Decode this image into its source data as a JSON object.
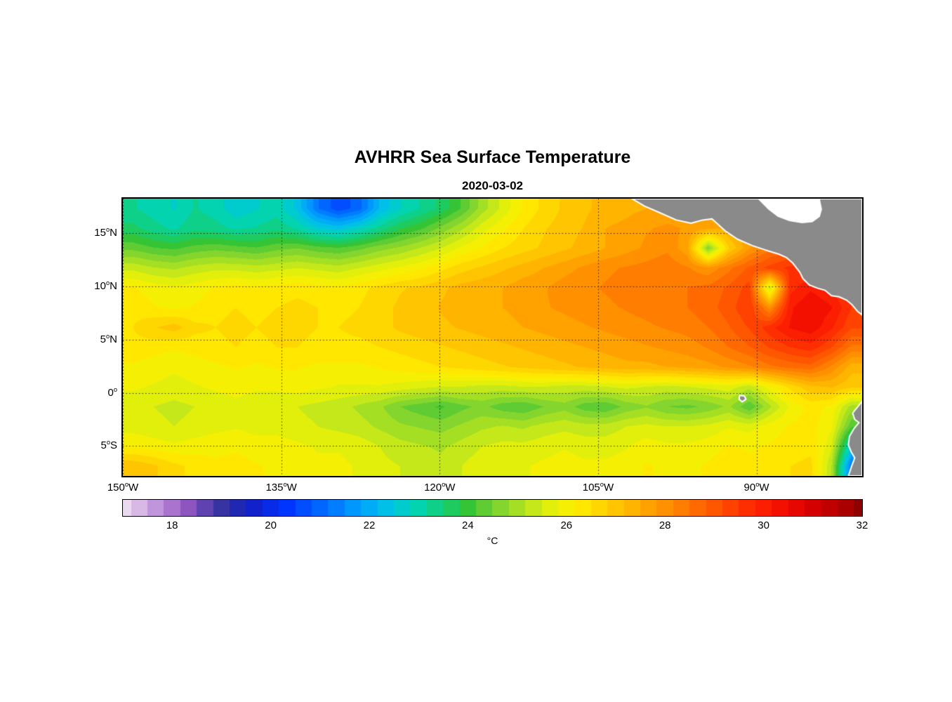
{
  "chart_data": {
    "type": "heatmap",
    "title": "AVHRR Sea Surface Temperature",
    "subtitle": "2020-03-02",
    "colorbar": {
      "label": "°C",
      "min": 17,
      "max": 32,
      "ticks": [
        18,
        20,
        22,
        24,
        26,
        28,
        30,
        32
      ]
    },
    "axes": {
      "lon_range": [
        -150,
        -80
      ],
      "lat_range": [
        -7.8,
        18.2
      ],
      "degree_symbol": "o",
      "xticks": [
        {
          "value": "150",
          "dir": "W",
          "lon": -150
        },
        {
          "value": "135",
          "dir": "W",
          "lon": -135
        },
        {
          "value": "120",
          "dir": "W",
          "lon": -120
        },
        {
          "value": "105",
          "dir": "W",
          "lon": -105
        },
        {
          "value": "90",
          "dir": "W",
          "lon": -90
        }
      ],
      "yticks": [
        {
          "value": "15",
          "dir": "N",
          "lat": 15
        },
        {
          "value": "10",
          "dir": "N",
          "lat": 10
        },
        {
          "value": "5",
          "dir": "N",
          "lat": 5
        },
        {
          "value": "0",
          "dir": "",
          "lat": 0
        },
        {
          "value": "5",
          "dir": "S",
          "lat": -5
        }
      ],
      "grid_style": "dotted"
    },
    "colormap": [
      [
        17.0,
        "#ead9f0"
      ],
      [
        17.4,
        "#d4b2e4"
      ],
      [
        17.8,
        "#b886d6"
      ],
      [
        18.3,
        "#9257c2"
      ],
      [
        18.7,
        "#5c3fae"
      ],
      [
        19.1,
        "#2b2f9e"
      ],
      [
        19.6,
        "#1320c8"
      ],
      [
        20.3,
        "#0033ff"
      ],
      [
        21.0,
        "#0066ff"
      ],
      [
        21.7,
        "#0099ff"
      ],
      [
        22.3,
        "#00bfea"
      ],
      [
        22.9,
        "#00d4bb"
      ],
      [
        23.5,
        "#13cf74"
      ],
      [
        24.0,
        "#35c435"
      ],
      [
        24.6,
        "#7ed32f"
      ],
      [
        25.2,
        "#b8e51e"
      ],
      [
        25.7,
        "#e5f00a"
      ],
      [
        26.2,
        "#ffee00"
      ],
      [
        26.8,
        "#ffd000"
      ],
      [
        27.4,
        "#ffb000"
      ],
      [
        28.0,
        "#ff9000"
      ],
      [
        28.6,
        "#ff6d00"
      ],
      [
        29.2,
        "#ff4a00"
      ],
      [
        29.8,
        "#ff2600"
      ],
      [
        30.4,
        "#f20d00"
      ],
      [
        31.0,
        "#d40000"
      ],
      [
        31.6,
        "#b00000"
      ],
      [
        32.0,
        "#8f0000"
      ]
    ],
    "land_color": "#8a8a8a",
    "coast_color": "#ffffff",
    "sst_grid": {
      "cols": 36,
      "rows": 14,
      "units": "degC",
      "values": [
        [
          23.2,
          23.0,
          22.8,
          23.2,
          23.0,
          22.6,
          22.8,
          23.0,
          22.4,
          21.2,
          20.6,
          21.0,
          22.2,
          22.8,
          23.2,
          23.6,
          24.2,
          25.0,
          25.6,
          26.2,
          26.6,
          26.9,
          27.1,
          27.3,
          27.4,
          27.5,
          27.6,
          27.6,
          27.4,
          27.2,
          27.2,
          27.3,
          27.5,
          27.5,
          27.4,
          27.2
        ],
        [
          23.6,
          23.3,
          23.1,
          23.4,
          23.3,
          23.1,
          23.2,
          23.4,
          23.1,
          22.6,
          22.4,
          22.8,
          23.3,
          23.8,
          24.1,
          24.6,
          25.1,
          25.7,
          26.1,
          26.5,
          26.8,
          27.0,
          27.2,
          27.5,
          27.6,
          27.8,
          27.9,
          27.8,
          27.6,
          27.5,
          27.7,
          27.9,
          28.1,
          28.0,
          27.8,
          27.6
        ],
        [
          24.4,
          24.2,
          24.1,
          24.3,
          24.4,
          24.3,
          24.2,
          24.4,
          24.5,
          24.3,
          24.2,
          24.4,
          24.7,
          24.9,
          25.2,
          25.5,
          25.9,
          26.2,
          26.5,
          26.7,
          26.9,
          27.1,
          27.3,
          27.5,
          27.7,
          27.9,
          28.1,
          27.6,
          24.6,
          26.8,
          27.8,
          28.4,
          28.7,
          28.5,
          28.2,
          28.0
        ],
        [
          25.4,
          25.2,
          25.1,
          25.3,
          25.4,
          25.4,
          25.3,
          25.4,
          25.5,
          25.4,
          25.3,
          25.5,
          25.7,
          25.9,
          26.1,
          26.4,
          26.7,
          26.9,
          27.1,
          27.3,
          27.5,
          27.7,
          27.9,
          28.1,
          28.2,
          28.3,
          28.4,
          28.2,
          27.9,
          28.4,
          28.9,
          29.3,
          29.6,
          29.4,
          29.0,
          28.5
        ],
        [
          26.2,
          26.0,
          25.9,
          26.0,
          26.2,
          26.3,
          26.2,
          26.3,
          26.4,
          26.3,
          26.2,
          26.4,
          26.6,
          26.8,
          26.9,
          27.1,
          27.3,
          27.4,
          27.5,
          27.7,
          27.8,
          28.0,
          28.1,
          28.2,
          28.3,
          28.4,
          28.5,
          28.5,
          28.6,
          28.9,
          29.3,
          25.4,
          29.7,
          30.1,
          29.8,
          29.2
        ],
        [
          26.4,
          26.2,
          26.1,
          26.2,
          26.4,
          26.5,
          26.4,
          26.5,
          26.6,
          26.5,
          26.4,
          26.5,
          26.7,
          26.9,
          27.0,
          27.2,
          27.3,
          27.4,
          27.5,
          27.6,
          27.8,
          27.9,
          28.0,
          28.1,
          28.2,
          28.3,
          28.4,
          28.5,
          28.7,
          29.0,
          29.5,
          28.0,
          30.1,
          30.5,
          30.2,
          29.5
        ],
        [
          26.5,
          26.8,
          27.0,
          26.6,
          26.5,
          26.6,
          26.5,
          26.6,
          26.6,
          26.5,
          26.5,
          26.6,
          26.7,
          26.9,
          27.0,
          27.1,
          27.2,
          27.3,
          27.4,
          27.5,
          27.6,
          27.7,
          27.8,
          27.9,
          28.0,
          28.1,
          28.2,
          28.3,
          28.5,
          28.8,
          29.2,
          29.7,
          30.2,
          30.4,
          29.9,
          29.2
        ],
        [
          26.4,
          26.3,
          26.2,
          26.3,
          26.4,
          26.5,
          26.4,
          26.5,
          26.5,
          26.4,
          26.4,
          26.4,
          26.5,
          26.6,
          26.7,
          26.8,
          26.9,
          27.0,
          27.1,
          27.2,
          27.3,
          27.4,
          27.5,
          27.6,
          27.7,
          27.8,
          27.9,
          28.0,
          28.2,
          28.5,
          28.8,
          29.2,
          29.5,
          29.7,
          29.2,
          28.4
        ],
        [
          26.1,
          26.0,
          25.9,
          26.0,
          26.1,
          26.2,
          26.1,
          26.2,
          26.2,
          26.1,
          26.1,
          26.1,
          26.2,
          26.3,
          26.4,
          26.5,
          26.6,
          26.7,
          26.8,
          26.9,
          27.0,
          27.1,
          27.2,
          27.3,
          27.4,
          27.4,
          27.5,
          27.6,
          27.7,
          27.9,
          28.1,
          28.4,
          28.6,
          28.7,
          28.1,
          27.3
        ],
        [
          25.9,
          25.8,
          25.7,
          25.8,
          25.9,
          26.0,
          25.9,
          25.9,
          26.0,
          25.9,
          25.8,
          25.8,
          25.8,
          25.7,
          25.6,
          25.5,
          25.5,
          25.4,
          25.4,
          25.5,
          25.5,
          25.4,
          25.4,
          25.5,
          25.6,
          25.5,
          25.4,
          25.5,
          25.6,
          25.7,
          25.3,
          26.0,
          26.6,
          27.1,
          27.2,
          26.9
        ],
        [
          25.6,
          25.5,
          25.4,
          25.5,
          25.6,
          25.7,
          25.6,
          25.6,
          25.5,
          25.4,
          25.3,
          25.1,
          24.9,
          24.5,
          24.3,
          24.1,
          24.4,
          24.6,
          24.3,
          24.2,
          24.5,
          24.7,
          24.3,
          24.2,
          24.6,
          24.8,
          24.5,
          24.4,
          24.6,
          24.9,
          24.2,
          25.1,
          25.9,
          26.3,
          26.1,
          25.0
        ],
        [
          25.7,
          25.6,
          25.5,
          25.6,
          25.7,
          25.8,
          25.7,
          25.7,
          25.6,
          25.5,
          25.4,
          25.3,
          25.1,
          24.9,
          24.8,
          24.7,
          24.9,
          25.1,
          25.2,
          25.1,
          25.3,
          25.4,
          25.3,
          25.3,
          25.5,
          25.6,
          25.5,
          25.5,
          25.6,
          25.8,
          25.7,
          26.0,
          26.2,
          26.3,
          25.9,
          24.2
        ],
        [
          26.1,
          26.0,
          25.9,
          26.0,
          26.1,
          26.1,
          26.0,
          26.0,
          25.9,
          25.8,
          25.8,
          25.7,
          25.5,
          25.3,
          25.2,
          25.1,
          25.3,
          25.5,
          25.6,
          25.6,
          25.7,
          25.8,
          25.7,
          25.7,
          25.8,
          26.0,
          25.9,
          25.9,
          26.0,
          26.2,
          26.1,
          26.2,
          26.3,
          26.4,
          25.6,
          22.5
        ],
        [
          27.1,
          26.9,
          26.6,
          26.4,
          26.2,
          26.3,
          26.2,
          26.1,
          26.0,
          25.9,
          25.9,
          25.8,
          25.6,
          25.5,
          25.4,
          25.3,
          25.5,
          25.7,
          25.8,
          25.8,
          25.9,
          26.0,
          25.9,
          25.9,
          26.0,
          26.2,
          26.1,
          26.1,
          26.2,
          26.4,
          26.3,
          26.4,
          26.5,
          26.6,
          25.2,
          21.0
        ]
      ]
    },
    "land_polygons": [
      {
        "name": "central-america",
        "fill": "#8a8a8a",
        "stroke": "#ffffff",
        "points": [
          [
            -101.8,
            18.2
          ],
          [
            -100.6,
            17.5
          ],
          [
            -99.2,
            16.9
          ],
          [
            -97.6,
            16.2
          ],
          [
            -96.2,
            15.9
          ],
          [
            -95.1,
            16.2
          ],
          [
            -94.2,
            16.3
          ],
          [
            -93.0,
            15.2
          ],
          [
            -91.8,
            14.4
          ],
          [
            -90.4,
            13.8
          ],
          [
            -89.2,
            13.4
          ],
          [
            -87.9,
            13.0
          ],
          [
            -87.2,
            12.7
          ],
          [
            -86.6,
            12.2
          ],
          [
            -85.9,
            11.3
          ],
          [
            -85.6,
            10.7
          ],
          [
            -85.0,
            10.1
          ],
          [
            -84.2,
            9.8
          ],
          [
            -83.5,
            9.6
          ],
          [
            -82.9,
            9.1
          ],
          [
            -82.2,
            9.0
          ],
          [
            -81.5,
            8.7
          ],
          [
            -81.0,
            8.3
          ],
          [
            -80.4,
            7.6
          ],
          [
            -80.0,
            7.3
          ],
          [
            -80.0,
            18.2
          ]
        ]
      },
      {
        "name": "caribbean-nodata",
        "fill": "#ffffff",
        "stroke": "none",
        "points": [
          [
            -89.9,
            18.2
          ],
          [
            -88.9,
            17.2
          ],
          [
            -88.0,
            16.5
          ],
          [
            -86.9,
            16.1
          ],
          [
            -85.7,
            15.9
          ],
          [
            -84.7,
            16.0
          ],
          [
            -84.0,
            16.5
          ],
          [
            -83.8,
            17.2
          ],
          [
            -84.0,
            18.2
          ]
        ]
      },
      {
        "name": "south-america",
        "fill": "#8a8a8a",
        "stroke": "#ffffff",
        "points": [
          [
            -80.0,
            -0.8
          ],
          [
            -80.4,
            -1.3
          ],
          [
            -80.9,
            -1.9
          ],
          [
            -80.7,
            -2.5
          ],
          [
            -80.3,
            -2.8
          ],
          [
            -80.8,
            -3.4
          ],
          [
            -81.2,
            -4.1
          ],
          [
            -81.3,
            -4.9
          ],
          [
            -81.0,
            -5.6
          ],
          [
            -80.7,
            -6.1
          ],
          [
            -81.0,
            -6.9
          ],
          [
            -81.3,
            -7.8
          ],
          [
            -80.0,
            -7.8
          ]
        ]
      },
      {
        "name": "galapagos-islands",
        "fill": "#8a8a8a",
        "stroke": "#ffffff",
        "points": [
          [
            -91.6,
            -0.25
          ],
          [
            -91.15,
            -0.3
          ],
          [
            -91.0,
            -0.6
          ],
          [
            -91.35,
            -0.85
          ],
          [
            -91.65,
            -0.6
          ]
        ]
      }
    ]
  }
}
